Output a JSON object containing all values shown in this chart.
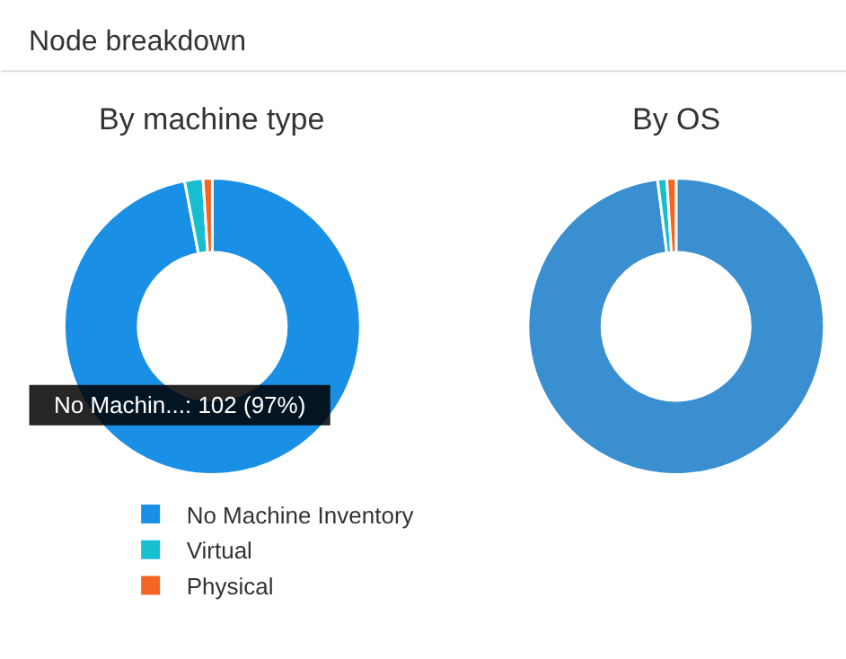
{
  "chart_data": [
    {
      "type": "donut",
      "title": "By machine type",
      "annotations": [
        "Node breakdown",
        "No Machin...: 102 (97%)"
      ],
      "categories": [
        "No Machine Inventory",
        "Virtual",
        "Physical"
      ],
      "values": [
        97,
        2,
        1
      ],
      "colors": [
        "#1a8fe6",
        "#17becf",
        "#f26522"
      ],
      "legend": "bottom"
    },
    {
      "type": "donut",
      "title": "By OS",
      "categories": [
        null,
        null,
        null
      ],
      "values": [
        98,
        1,
        1
      ],
      "colors": [
        "#3a8fd0",
        "#17becf",
        "#f26522"
      ]
    }
  ]
}
